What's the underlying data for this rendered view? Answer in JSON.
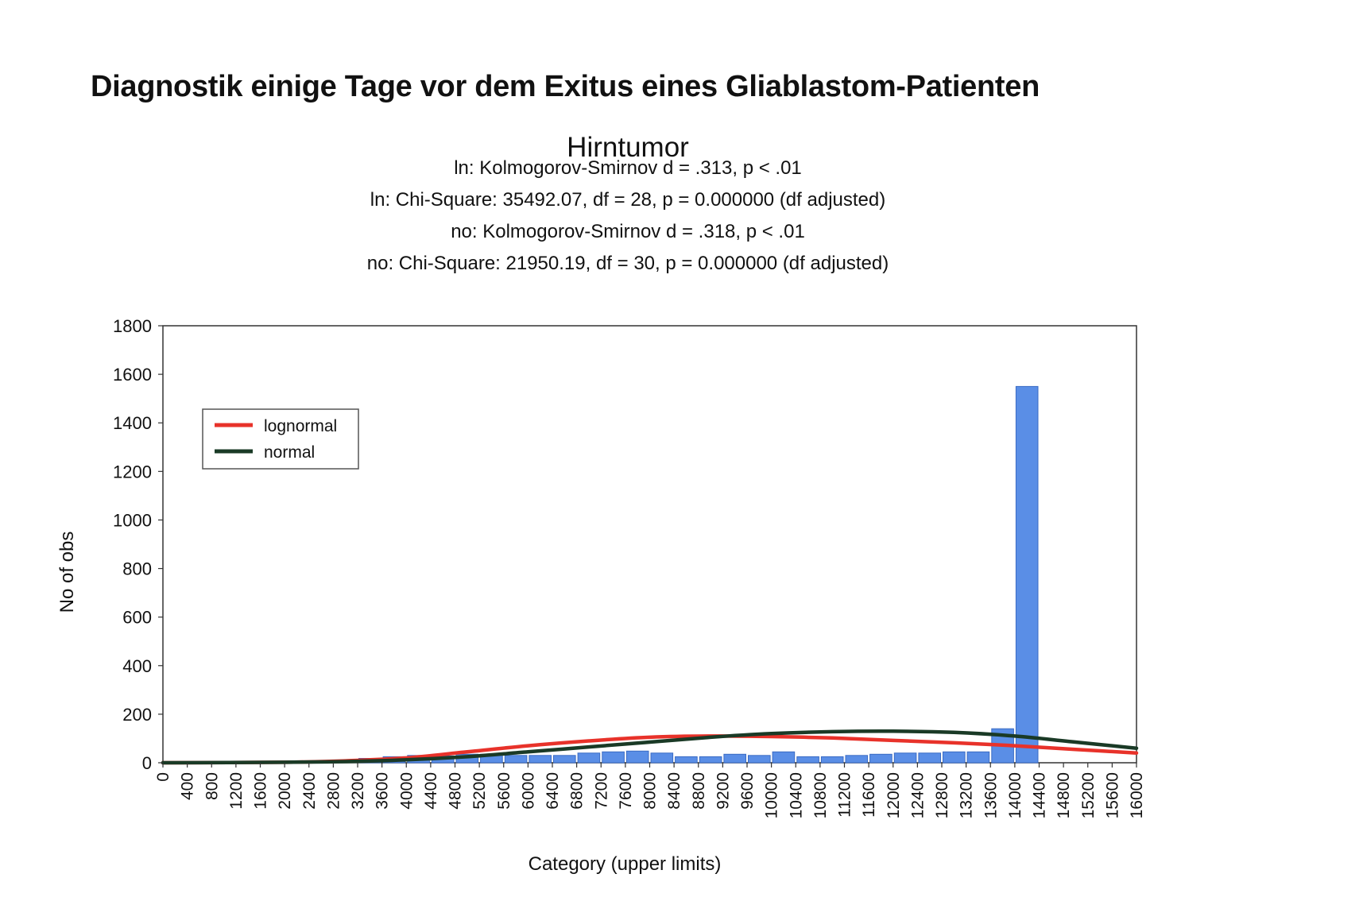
{
  "slide_title": "Diagnostik einige Tage vor dem Exitus eines Gliablastom-Patienten",
  "chart_data": {
    "type": "bar",
    "title": "Hirntumor",
    "subtitle_lines": [
      "ln: Kolmogorov-Smirnov d = .313, p < .01",
      "ln: Chi-Square: 35492.07, df = 28, p = 0.000000 (df adjusted)",
      "no: Kolmogorov-Smirnov d = .318, p < .01",
      "no: Chi-Square: 21950.19, df = 30, p = 0.000000 (df adjusted)"
    ],
    "xlabel": "Category (upper limits)",
    "ylabel": "No of obs",
    "ylim": [
      0,
      1800
    ],
    "y_ticks": [
      0,
      200,
      400,
      600,
      800,
      1000,
      1200,
      1400,
      1600,
      1800
    ],
    "xlim": [
      0,
      16000
    ],
    "x_ticks": [
      0,
      400,
      800,
      1200,
      1600,
      2000,
      2400,
      2800,
      3200,
      3600,
      4000,
      4400,
      4800,
      5200,
      5600,
      6000,
      6400,
      6800,
      7200,
      7600,
      8000,
      8400,
      8800,
      9200,
      9600,
      10000,
      10400,
      10800,
      11200,
      11600,
      12000,
      12400,
      12800,
      13200,
      13600,
      14000,
      14400,
      14800,
      15200,
      15600,
      16000
    ],
    "bar_color": "#5a8ee6",
    "bars": {
      "upper_limits": [
        400,
        800,
        1200,
        1600,
        2000,
        2400,
        2800,
        3200,
        3600,
        4000,
        4400,
        4800,
        5200,
        5600,
        6000,
        6400,
        6800,
        7200,
        7600,
        8000,
        8400,
        8800,
        9200,
        9600,
        10000,
        10400,
        10800,
        11200,
        11600,
        12000,
        12400,
        12800,
        13200,
        13600,
        14000,
        14400,
        14800,
        15200,
        15600,
        16000
      ],
      "values": [
        3,
        2,
        2,
        4,
        5,
        5,
        6,
        8,
        18,
        25,
        30,
        28,
        35,
        35,
        30,
        30,
        30,
        40,
        45,
        48,
        40,
        25,
        25,
        35,
        30,
        45,
        25,
        25,
        30,
        35,
        40,
        40,
        45,
        45,
        140,
        1550,
        0,
        0,
        0,
        0
      ]
    },
    "series": [
      {
        "name": "lognormal",
        "color": "#e8322a",
        "x": [
          0,
          2000,
          3000,
          4000,
          5000,
          6000,
          7000,
          8000,
          9000,
          10000,
          11000,
          12000,
          13000,
          14000,
          15000,
          16000
        ],
        "y": [
          0,
          2,
          8,
          20,
          45,
          70,
          90,
          105,
          110,
          108,
          102,
          92,
          82,
          70,
          55,
          40
        ]
      },
      {
        "name": "normal",
        "color": "#1a3a26",
        "x": [
          0,
          2000,
          3000,
          4000,
          5000,
          6000,
          7000,
          8000,
          9000,
          10000,
          11000,
          12000,
          13000,
          14000,
          15000,
          16000
        ],
        "y": [
          0,
          2,
          5,
          12,
          25,
          45,
          65,
          85,
          105,
          120,
          128,
          130,
          125,
          110,
          85,
          60
        ]
      }
    ],
    "legend_position": "top-left",
    "grid": false
  }
}
